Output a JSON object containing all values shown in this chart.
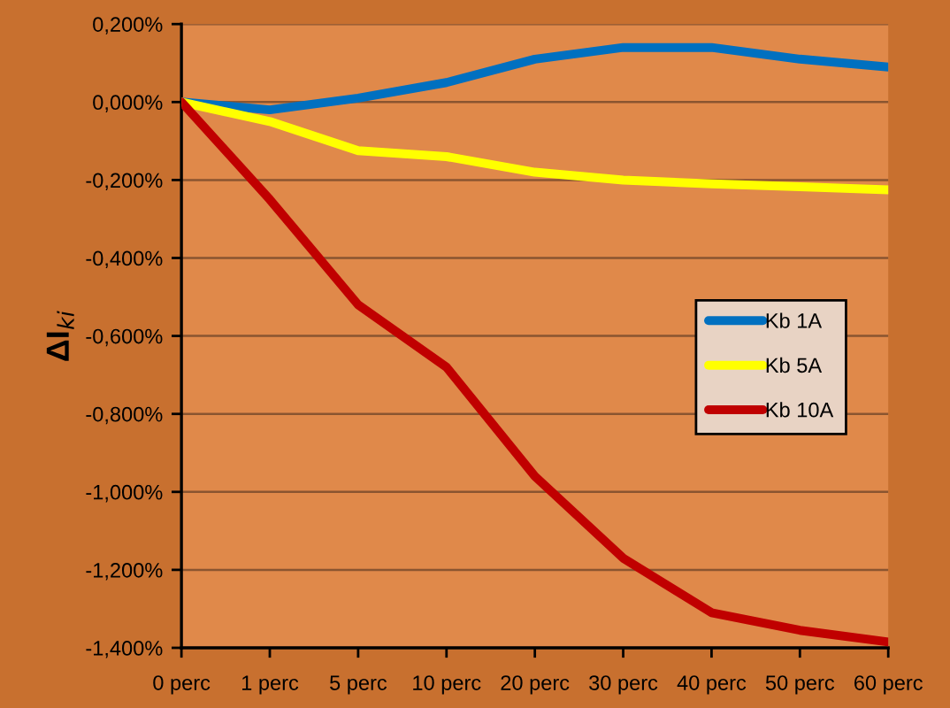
{
  "chart_data": {
    "type": "line",
    "ylabel": "ΔI$_{ki}$",
    "categories": [
      "0 perc",
      "1 perc",
      "5 perc",
      "10 perc",
      "20 perc",
      "30 perc",
      "40 perc",
      "50 perc",
      "60 perc"
    ],
    "series": [
      {
        "name": "Kb 1A",
        "color": "#0070c0",
        "values": [
          0.0,
          -0.02,
          0.01,
          0.05,
          0.11,
          0.14,
          0.14,
          0.11,
          0.09
        ]
      },
      {
        "name": "Kb 5A",
        "color": "#ffff00",
        "values": [
          0.0,
          -0.05,
          -0.125,
          -0.14,
          -0.18,
          -0.2,
          -0.21,
          -0.217,
          -0.225
        ]
      },
      {
        "name": "Kb 10A",
        "color": "#c00000",
        "values": [
          0.0,
          -0.25,
          -0.52,
          -0.68,
          -0.96,
          -1.17,
          -1.31,
          -1.355,
          -1.385
        ]
      }
    ],
    "ylim": [
      -1.4,
      0.2
    ],
    "yticks": [
      {
        "value": -1.4,
        "label": "-1,400%"
      },
      {
        "value": -1.2,
        "label": "-1,200%"
      },
      {
        "value": -1.0,
        "label": "-1,000%"
      },
      {
        "value": -0.8,
        "label": "-0,800%"
      },
      {
        "value": -0.6,
        "label": "-0,600%"
      },
      {
        "value": -0.4,
        "label": "-0,400%"
      },
      {
        "value": -0.2,
        "label": "-0,200%"
      },
      {
        "value": 0.0,
        "label": "0,000%"
      },
      {
        "value": 0.2,
        "label": "0,200%"
      }
    ],
    "grid": "y",
    "legend": "right"
  }
}
